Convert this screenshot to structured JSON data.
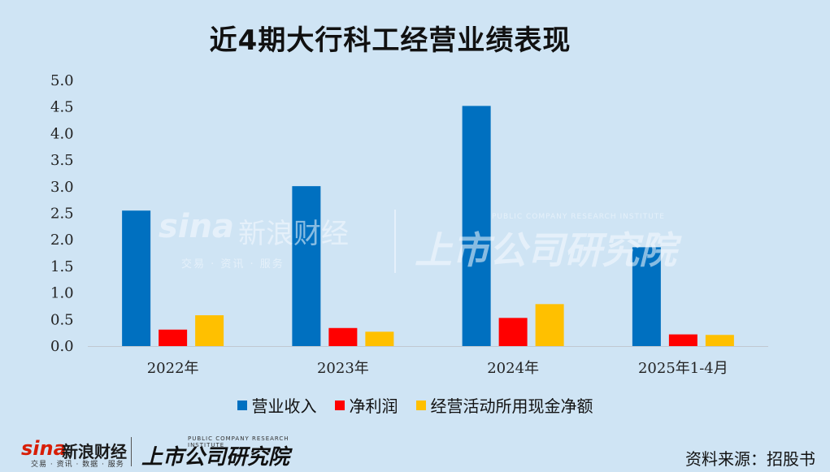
{
  "title": "近4期大行科工经营业绩表现",
  "watermark": {
    "sina_logo": "sina",
    "sina_name": "新浪财经",
    "sina_sub": "交易 · 资讯 · 服务",
    "institute": "上市公司研究院",
    "institute_en": "PUBLIC COMPANY RESEARCH INSTITUTE"
  },
  "footer": {
    "sina_logo": "sina",
    "sina_name": "新浪财经",
    "sina_sub": "交易 · 资讯 · 数据 · 服务",
    "institute": "上市公司研究院",
    "institute_en": "PUBLIC COMPANY RESEARCH INSTITUTE",
    "source": "资料来源：招股书"
  },
  "colors": {
    "revenue": "#0070c0",
    "net_profit": "#ff0000",
    "cash_flow": "#ffc000",
    "background": "#cfe4f4"
  },
  "chart_data": {
    "type": "bar",
    "categories": [
      "2022年",
      "2023年",
      "2024年",
      "2025年1-4月"
    ],
    "series": [
      {
        "name": "营业收入",
        "values": [
          2.55,
          3.01,
          4.52,
          1.86
        ],
        "color": "#0070c0"
      },
      {
        "name": "净利润",
        "values": [
          0.31,
          0.34,
          0.53,
          0.22
        ],
        "color": "#ff0000"
      },
      {
        "name": "经营活动所用现金净额",
        "values": [
          0.58,
          0.27,
          0.79,
          0.21
        ],
        "color": "#ffc000"
      }
    ],
    "yticks": [
      "0.0",
      "0.5",
      "1.0",
      "1.5",
      "2.0",
      "2.5",
      "3.0",
      "3.5",
      "4.0",
      "4.5",
      "5.0"
    ],
    "ylim": [
      0,
      5
    ],
    "legend_position": "bottom",
    "grid": false
  }
}
